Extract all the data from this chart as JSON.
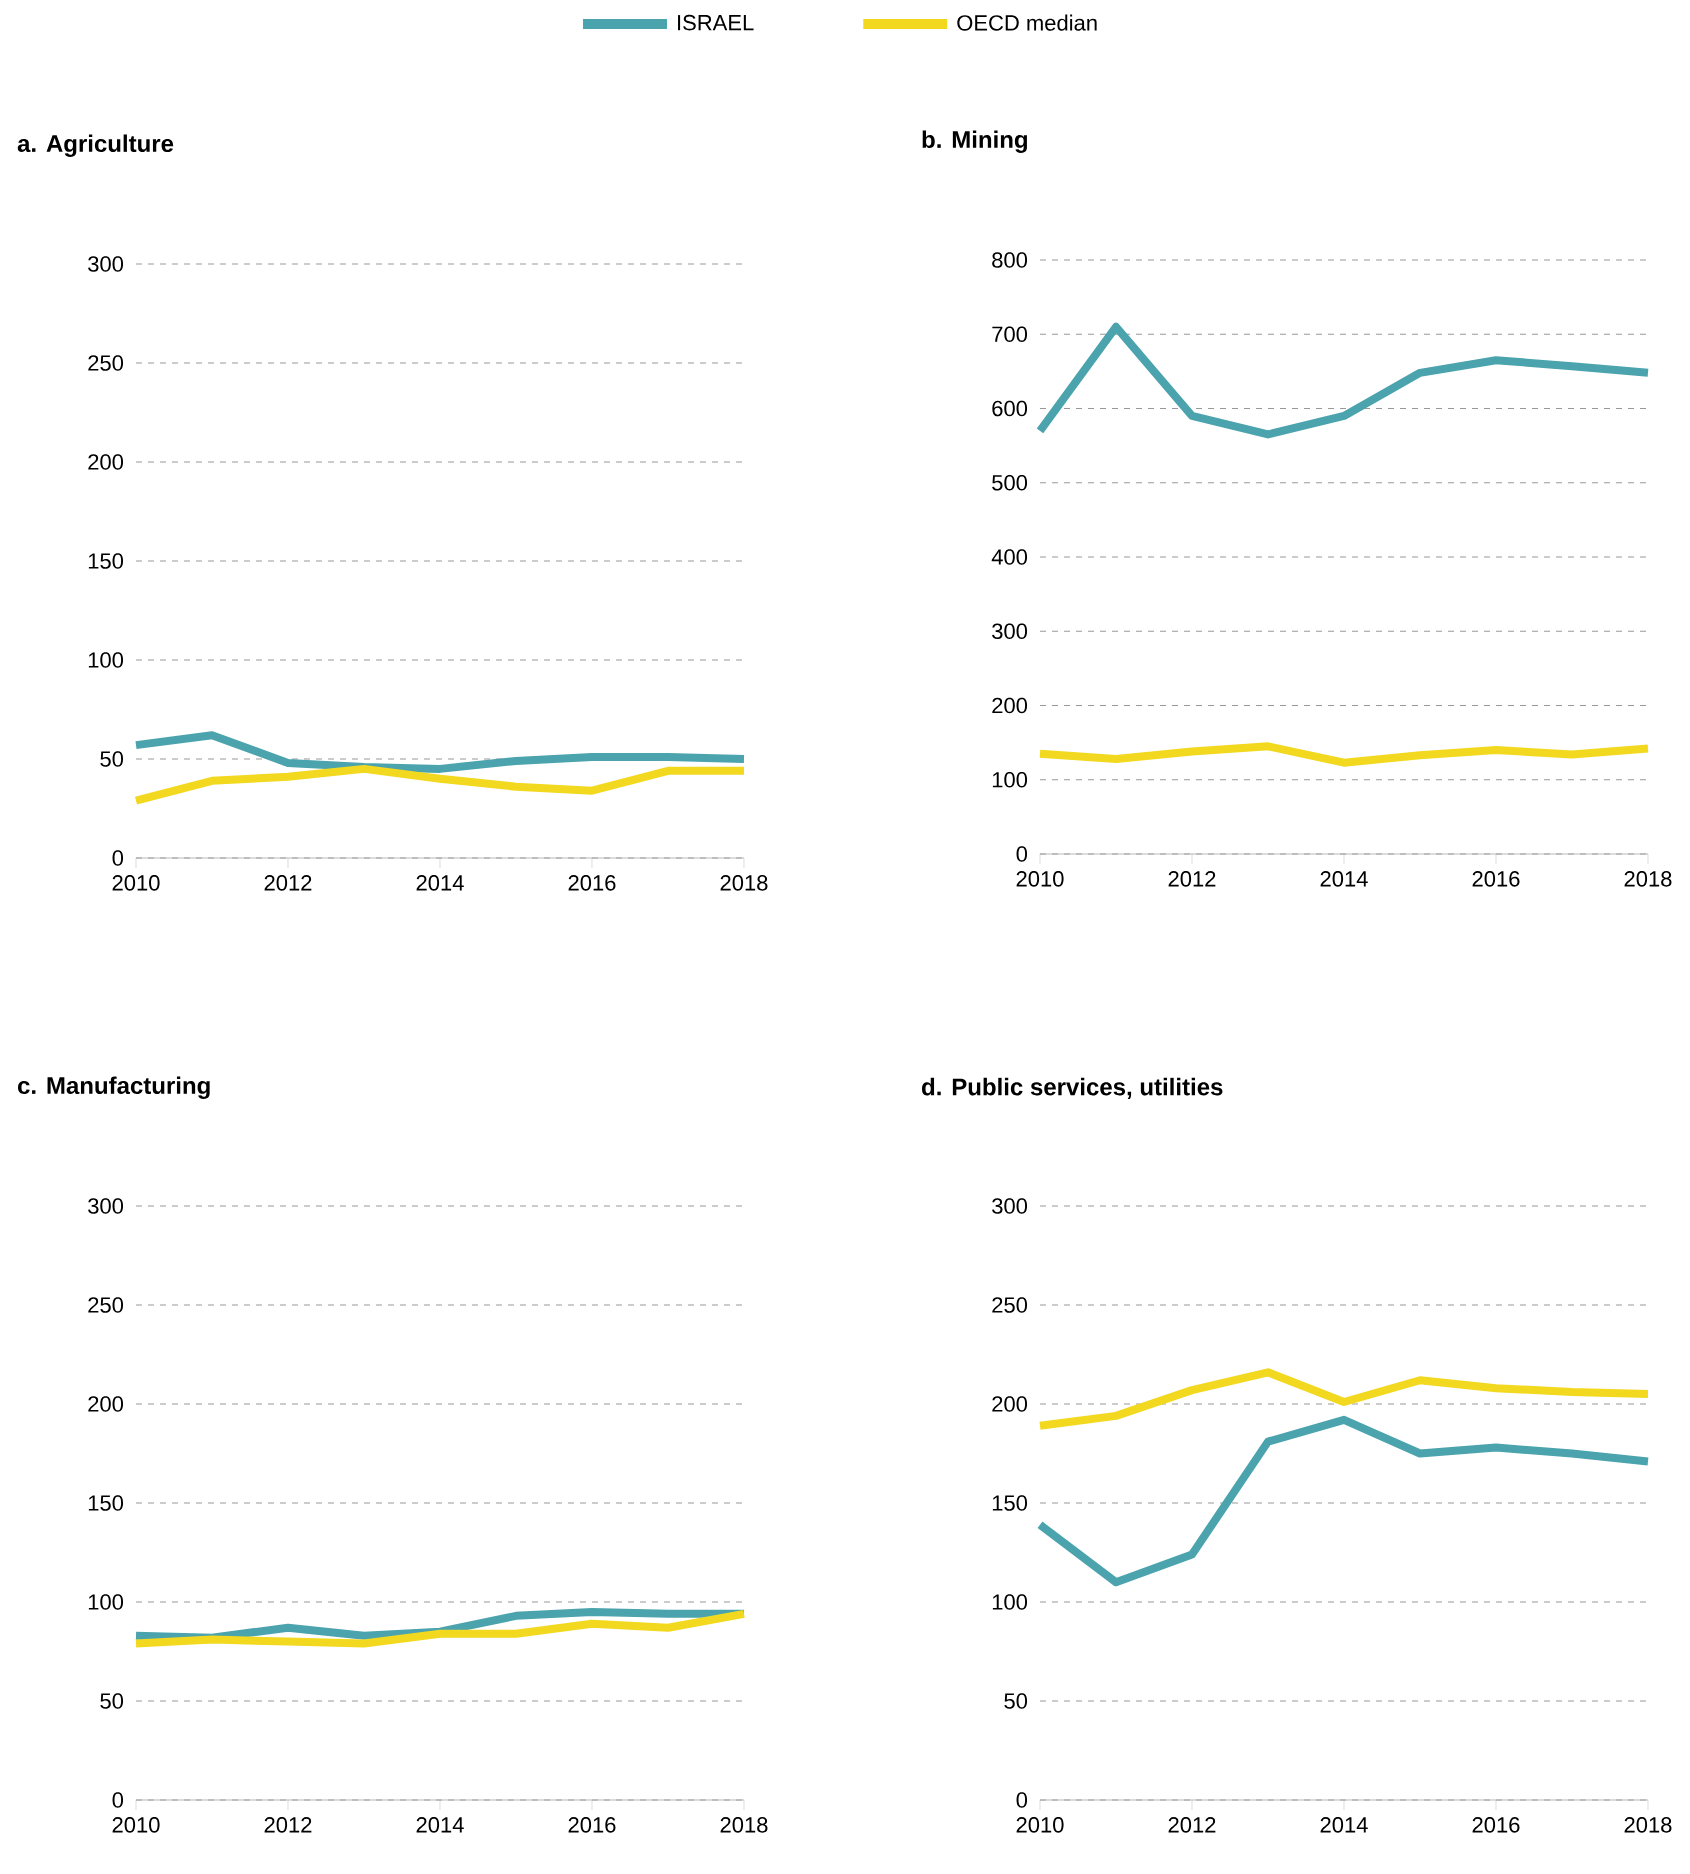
{
  "chart_data": [
    {
      "type": "line",
      "title": "a. Agriculture",
      "legend": "top",
      "grid": "y",
      "x": [
        2010,
        2011,
        2012,
        2013,
        2014,
        2015,
        2016,
        2017,
        2018
      ],
      "xlim": [
        2010,
        2018
      ],
      "xticks": [
        2010,
        2012,
        2014,
        2016,
        2018
      ],
      "ylim": [
        0,
        300
      ],
      "yticks": [
        0,
        50,
        100,
        150,
        200,
        250,
        300
      ],
      "series": [
        {
          "name": "ISRAEL",
          "color": "#4aa3ad",
          "values": [
            57,
            62,
            48,
            46,
            45,
            49,
            51,
            51,
            50
          ]
        },
        {
          "name": "OECD median",
          "color": "#f2d81e",
          "values": [
            29,
            39,
            41,
            45,
            40,
            36,
            34,
            44,
            44
          ]
        }
      ]
    },
    {
      "type": "line",
      "title": "b. Mining",
      "grid": "y",
      "x": [
        2010,
        2011,
        2012,
        2013,
        2014,
        2015,
        2016,
        2017,
        2018
      ],
      "xlim": [
        2010,
        2018
      ],
      "xticks": [
        2010,
        2012,
        2014,
        2016,
        2018
      ],
      "ylim": [
        0,
        800
      ],
      "yticks": [
        0,
        100,
        200,
        300,
        400,
        500,
        600,
        700,
        800
      ],
      "series": [
        {
          "color": "#4aa3ad",
          "values": [
            570,
            710,
            590,
            565,
            590,
            648,
            665,
            657,
            648
          ]
        },
        {
          "color": "#f2d81e",
          "values": [
            135,
            128,
            138,
            145,
            123,
            133,
            140,
            134,
            142
          ]
        }
      ]
    },
    {
      "type": "line",
      "title": "c. Manufacturing",
      "grid": "y",
      "x": [
        2010,
        2011,
        2012,
        2013,
        2014,
        2015,
        2016,
        2017,
        2018
      ],
      "xlim": [
        2010,
        2018
      ],
      "xticks": [
        2010,
        2012,
        2014,
        2016,
        2018
      ],
      "ylim": [
        0,
        300
      ],
      "yticks": [
        0,
        50,
        100,
        150,
        200,
        250,
        300
      ],
      "series": [
        {
          "color": "#4aa3ad",
          "values": [
            83,
            82,
            87,
            83,
            85,
            93,
            95,
            94,
            94
          ]
        },
        {
          "color": "#f2d81e",
          "values": [
            79,
            81,
            80,
            79,
            84,
            84,
            89,
            87,
            94
          ]
        }
      ]
    },
    {
      "type": "line",
      "title": "d. Public services, utilities",
      "grid": "y",
      "x": [
        2010,
        2011,
        2012,
        2013,
        2014,
        2015,
        2016,
        2017,
        2018
      ],
      "xlim": [
        2010,
        2018
      ],
      "xticks": [
        2010,
        2012,
        2014,
        2016,
        2018
      ],
      "ylim": [
        0,
        300
      ],
      "yticks": [
        0,
        50,
        100,
        150,
        200,
        250,
        300
      ],
      "series": [
        {
          "color": "#4aa3ad",
          "values": [
            139,
            110,
            124,
            181,
            192,
            175,
            178,
            175,
            171
          ]
        },
        {
          "color": "#f2d81e",
          "values": [
            189,
            194,
            207,
            216,
            201,
            212,
            208,
            206,
            205
          ]
        }
      ]
    }
  ]
}
